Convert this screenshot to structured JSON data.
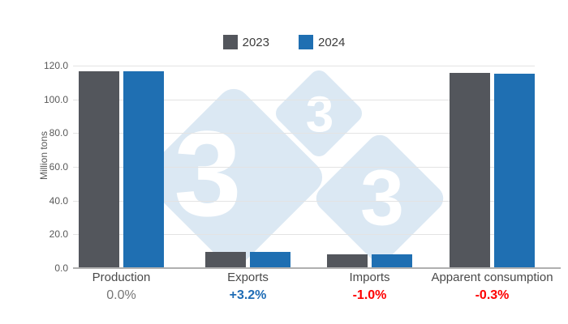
{
  "legend": {
    "items": [
      {
        "label": "2023",
        "color": "#53565c"
      },
      {
        "label": "2024",
        "color": "#1f6fb2"
      }
    ]
  },
  "chart_data": {
    "type": "bar",
    "title": "",
    "ylabel": "Million tons",
    "ylim": [
      0,
      120
    ],
    "grid": true,
    "legend_position": "top",
    "yticks": [
      {
        "value": 120,
        "label": "120.0"
      },
      {
        "value": 100,
        "label": "100.0"
      },
      {
        "value": 80,
        "label": "80.0"
      },
      {
        "value": 60,
        "label": "60.0"
      },
      {
        "value": 40,
        "label": "40.0"
      },
      {
        "value": 20,
        "label": "20.0"
      },
      {
        "value": 0,
        "label": "0.0"
      }
    ],
    "categories": [
      "Production",
      "Exports",
      "Imports",
      "Apparent consumption"
    ],
    "series": [
      {
        "name": "2023",
        "color": "#53565c",
        "values": [
          116.2,
          9.0,
          7.9,
          115.1
        ]
      },
      {
        "name": "2024",
        "color": "#1f6fb2",
        "values": [
          116.2,
          9.3,
          7.8,
          114.8
        ]
      }
    ],
    "change_labels": [
      {
        "text": "0.0%",
        "color": "#767676",
        "bold": false
      },
      {
        "text": "+3.2%",
        "color": "#1e6cb5",
        "bold": true
      },
      {
        "text": "-1.0%",
        "color": "#fe0000",
        "bold": true
      },
      {
        "text": "-0.3%",
        "color": "#fe0000",
        "bold": true
      }
    ]
  },
  "watermark": {
    "digit": "3",
    "diamond_color": "#dbe8f3",
    "digit_color": "#ffffff"
  }
}
